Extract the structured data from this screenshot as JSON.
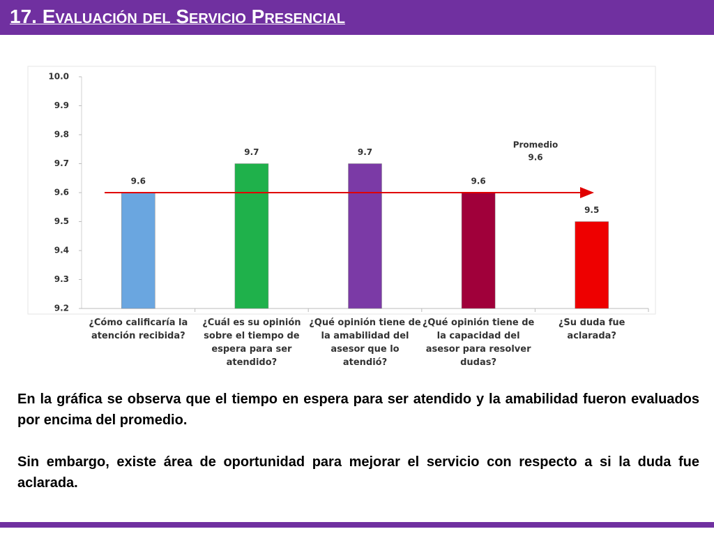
{
  "title": "17. Evaluación del Servicio Presencial",
  "chart_data": {
    "type": "bar",
    "categories": [
      "¿Cómo calificaría la atención recibida?",
      "¿Cuál es su opinión sobre el tiempo de espera para ser atendido?",
      "¿Qué opinión tiene de la amabilidad del asesor que lo atendió?",
      "¿Qué opinión tiene de la capacidad del asesor para resolver dudas?",
      "¿Su duda fue aclarada?"
    ],
    "values": [
      9.6,
      9.7,
      9.7,
      9.6,
      9.5
    ],
    "colors": [
      "#6aa6e0",
      "#1fb14b",
      "#7b3aa6",
      "#a0003a",
      "#ee0000"
    ],
    "ylim": [
      9.2,
      10
    ],
    "yticks": [
      {
        "value": 9.2,
        "label": "9.2"
      },
      9.3,
      9.4,
      9.5,
      9.6,
      9.7,
      9.8,
      9.9,
      {
        "value": 10,
        "label": "10.0"
      }
    ],
    "average": {
      "label": "Promedio",
      "value": 9.6,
      "color": "#e00000"
    }
  },
  "paragraphs": [
    "En la gráfica se observa que el tiempo en espera para ser atendido y la amabilidad fueron evaluados por encima del promedio.",
    "Sin embargo, existe área de oportunidad para mejorar el servicio con respecto a si la duda fue aclarada."
  ]
}
